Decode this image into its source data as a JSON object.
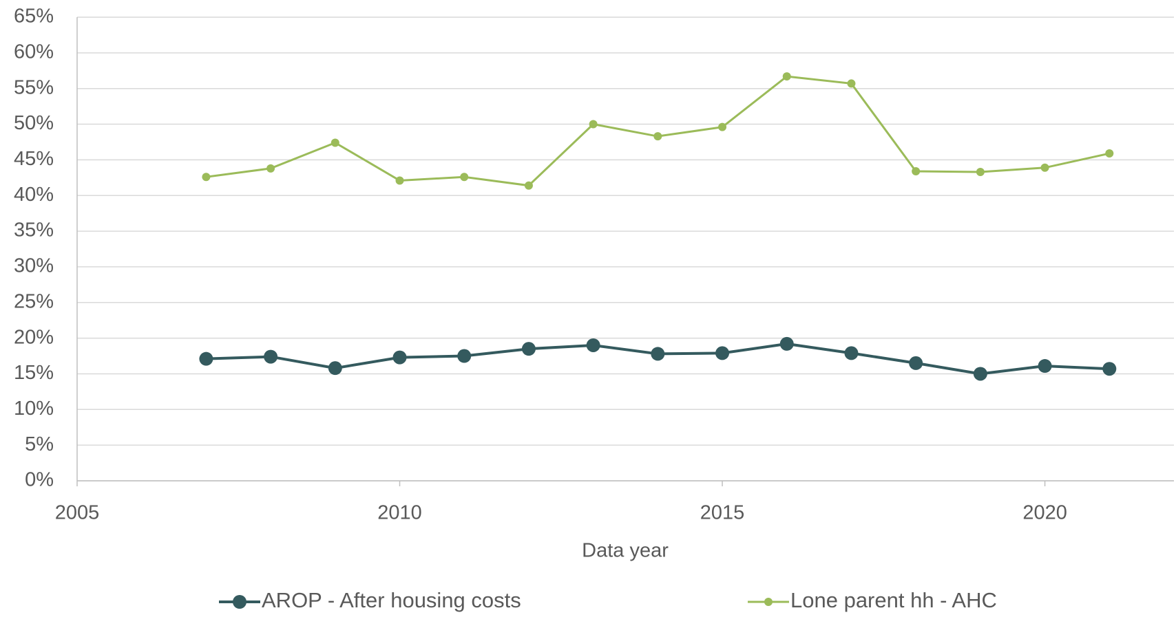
{
  "chart_data": {
    "type": "line",
    "xlabel": "Data year",
    "x": [
      2007,
      2008,
      2009,
      2010,
      2011,
      2012,
      2013,
      2014,
      2015,
      2016,
      2017,
      2018,
      2019,
      2020,
      2021
    ],
    "series": [
      {
        "name": "AROP - After housing costs",
        "color": "#345a5e",
        "values": [
          17.1,
          17.4,
          15.8,
          17.3,
          17.5,
          18.5,
          19.0,
          17.8,
          17.9,
          19.2,
          17.9,
          16.5,
          15.0,
          16.1,
          15.7
        ]
      },
      {
        "name": "Lone parent hh - AHC",
        "color": "#9bbb59",
        "values": [
          42.6,
          43.8,
          47.4,
          42.1,
          42.6,
          41.4,
          50.0,
          48.3,
          49.6,
          56.7,
          55.7,
          43.4,
          43.3,
          43.9,
          45.9
        ]
      }
    ],
    "xlim": [
      2005,
      2022
    ],
    "xticks": [
      2005,
      2010,
      2015,
      2020
    ],
    "ylim": [
      0,
      65
    ],
    "yticks": [
      {
        "value": 0,
        "label": "0%"
      },
      {
        "value": 5,
        "label": "5%"
      },
      {
        "value": 10,
        "label": "10%"
      },
      {
        "value": 15,
        "label": "15%"
      },
      {
        "value": 20,
        "label": "20%"
      },
      {
        "value": 25,
        "label": "25%"
      },
      {
        "value": 30,
        "label": "30%"
      },
      {
        "value": 35,
        "label": "35%"
      },
      {
        "value": 40,
        "label": "40%"
      },
      {
        "value": 45,
        "label": "45%"
      },
      {
        "value": 50,
        "label": "50%"
      },
      {
        "value": 55,
        "label": "55%"
      },
      {
        "value": 60,
        "label": "60%"
      },
      {
        "value": 65,
        "label": "65%"
      }
    ],
    "grid": true,
    "legend": "bottom"
  }
}
